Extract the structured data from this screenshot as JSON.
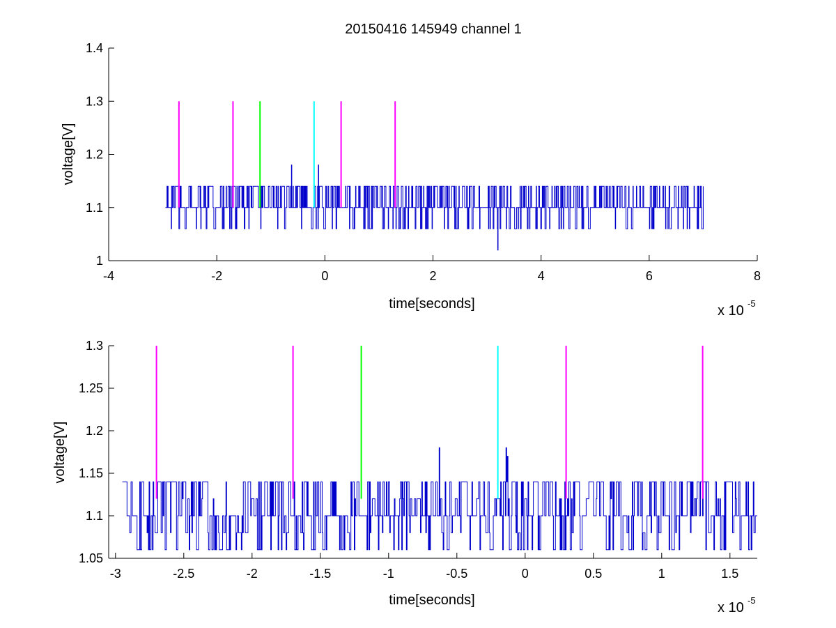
{
  "figure": {
    "title": "20150416 145949 channel 1"
  },
  "chart_data": [
    {
      "type": "line",
      "title": "20150416 145949 channel 1",
      "xlabel": "time[seconds]",
      "ylabel": "voltage[V]",
      "x_exponent_label": "x 10",
      "x_exponent": "-5",
      "xlim": [
        -4,
        8
      ],
      "ylim": [
        1,
        1.4
      ],
      "xticks": [
        -4,
        -2,
        0,
        2,
        4,
        6,
        8
      ],
      "xtick_labels": [
        "-4",
        "-2",
        "0",
        "2",
        "4",
        "6",
        "8"
      ],
      "yticks": [
        1,
        1.1,
        1.2,
        1.3,
        1.4
      ],
      "ytick_labels": [
        "1",
        "1.1",
        "1.2",
        "1.3",
        "1.4"
      ],
      "grid": false,
      "signal": {
        "color": "#0000cc",
        "x_start": -2.95,
        "x_end": 7.0,
        "levels": [
          1.06,
          1.1,
          1.14
        ],
        "baseline": 1.1,
        "spikes": [
          {
            "x": -0.62,
            "y": 1.18
          },
          {
            "x": -0.12,
            "y": 1.18
          },
          {
            "x": 3.2,
            "y": 1.02
          }
        ]
      },
      "markers": [
        {
          "x": -2.7,
          "y0": 1.1,
          "y1": 1.3,
          "color": "#ff00ff"
        },
        {
          "x": -1.7,
          "y0": 1.1,
          "y1": 1.3,
          "color": "#ff00ff"
        },
        {
          "x": -1.2,
          "y0": 1.1,
          "y1": 1.3,
          "color": "#00ff00"
        },
        {
          "x": -0.2,
          "y0": 1.1,
          "y1": 1.3,
          "color": "#00ffff"
        },
        {
          "x": 0.3,
          "y0": 1.1,
          "y1": 1.3,
          "color": "#ff00ff"
        },
        {
          "x": 1.3,
          "y0": 1.1,
          "y1": 1.3,
          "color": "#ff00ff"
        }
      ]
    },
    {
      "type": "line",
      "xlabel": "time[seconds]",
      "ylabel": "voltage[V]",
      "x_exponent_label": "x 10",
      "x_exponent": "-5",
      "xlim": [
        -3.05,
        1.7
      ],
      "ylim": [
        1.05,
        1.3
      ],
      "xticks": [
        -3,
        -2.5,
        -2,
        -1.5,
        -1,
        -0.5,
        0,
        0.5,
        1,
        1.5
      ],
      "xtick_labels": [
        "-3",
        "-2.5",
        "-2",
        "-1.5",
        "-1",
        "-0.5",
        "0",
        "0.5",
        "1",
        "1.5"
      ],
      "yticks": [
        1.05,
        1.1,
        1.15,
        1.2,
        1.25,
        1.3
      ],
      "ytick_labels": [
        "1.05",
        "1.1",
        "1.15",
        "1.2",
        "1.25",
        "1.3"
      ],
      "grid": false,
      "signal": {
        "color": "#0000cc",
        "x_start": -2.95,
        "x_end": 1.7,
        "levels": [
          1.06,
          1.08,
          1.1,
          1.12,
          1.14
        ],
        "baseline": 1.1,
        "spikes": [
          {
            "x": -0.63,
            "y": 1.18
          },
          {
            "x": -0.14,
            "y": 1.18
          },
          {
            "x": -0.13,
            "y": 1.17
          }
        ]
      },
      "markers": [
        {
          "x": -2.7,
          "y0": 1.12,
          "y1": 1.3,
          "color": "#ff00ff"
        },
        {
          "x": -1.7,
          "y0": 1.12,
          "y1": 1.3,
          "color": "#ff00ff"
        },
        {
          "x": -1.2,
          "y0": 1.12,
          "y1": 1.3,
          "color": "#00ff00"
        },
        {
          "x": -0.2,
          "y0": 1.12,
          "y1": 1.3,
          "color": "#00ffff"
        },
        {
          "x": 0.3,
          "y0": 1.12,
          "y1": 1.3,
          "color": "#ff00ff"
        },
        {
          "x": 1.3,
          "y0": 1.12,
          "y1": 1.3,
          "color": "#ff00ff"
        }
      ]
    }
  ]
}
